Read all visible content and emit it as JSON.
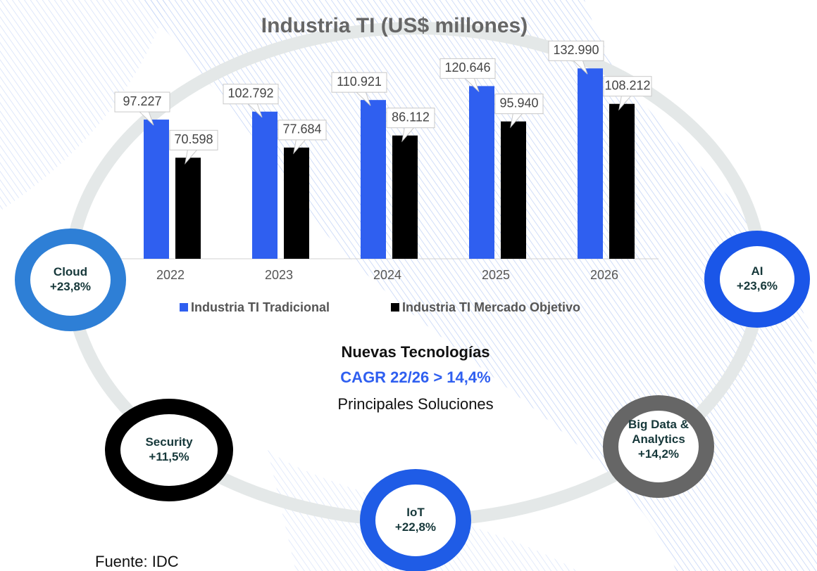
{
  "chart_data": {
    "type": "bar",
    "title": "Industria TI (US$ millones)",
    "categories": [
      "2022",
      "2023",
      "2024",
      "2025",
      "2026"
    ],
    "series": [
      {
        "name": "Industria TI Tradicional",
        "color": "#2f5ff0",
        "values": [
          97227,
          102792,
          110921,
          120646,
          132990
        ],
        "value_labels": [
          "97.227",
          "102.792",
          "110.921",
          "120.646",
          "132.990"
        ]
      },
      {
        "name": "Industria TI Mercado Objetivo",
        "color": "#000000",
        "values": [
          70598,
          77684,
          86112,
          95940,
          108212
        ],
        "value_labels": [
          "70.598",
          "77.684",
          "86.112",
          "95.940",
          "108.212"
        ]
      }
    ],
    "ylim": [
      0,
      140000
    ],
    "legend": "bottom"
  },
  "center_text": {
    "heading": "Nuevas Tecnologías",
    "cagr": "CAGR 22/26 > 14,4%",
    "subtitle": "Principales Soluciones"
  },
  "solutions": [
    {
      "name": "Cloud",
      "growth": "+23,8%",
      "color": "#2e7fd6"
    },
    {
      "name": "AI",
      "growth": "+23,6%",
      "color": "#1a56e8"
    },
    {
      "name": "Security",
      "growth": "+11,5%",
      "color": "#000000"
    },
    {
      "name": "IoT",
      "growth": "+22,8%",
      "color": "#1f5ce6"
    },
    {
      "name": "Big Data & Analytics",
      "growth": "+14,2%",
      "color": "#666666"
    }
  ],
  "source": "Fuente: IDC"
}
